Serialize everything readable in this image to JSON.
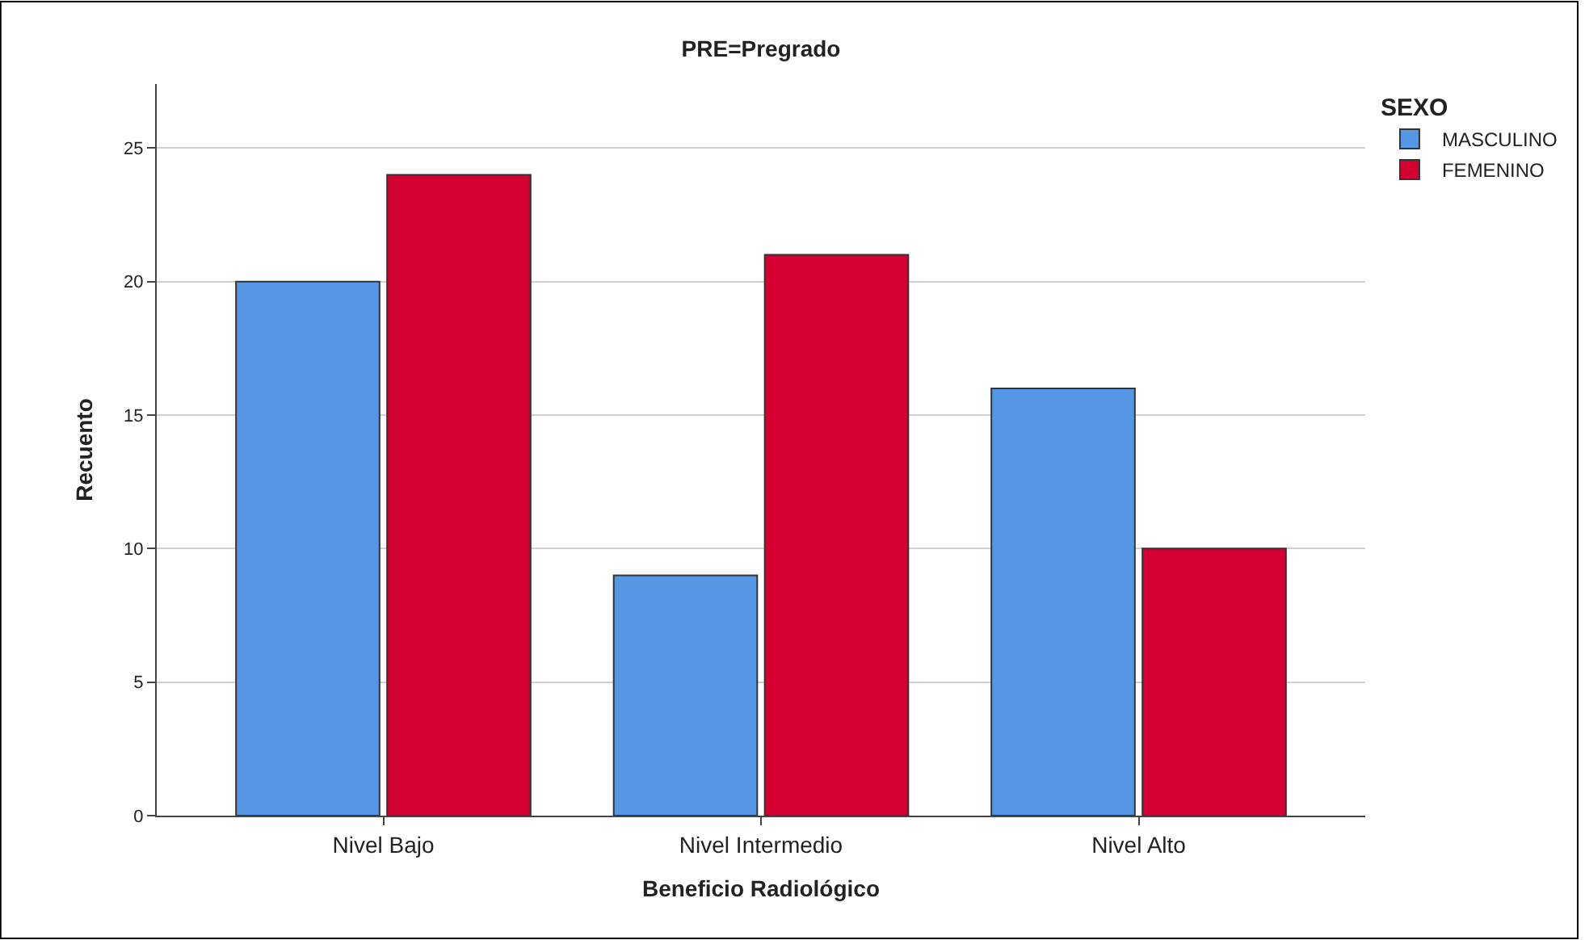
{
  "chart_data": {
    "type": "bar",
    "title": "PRE=Pregrado",
    "xlabel": "Beneficio Radiológico",
    "ylabel": "Recuento",
    "legend_title": "SEXO",
    "categories": [
      "Nivel Bajo",
      "Nivel Intermedio",
      "Nivel Alto"
    ],
    "series": [
      {
        "name": "MASCULINO",
        "color": "#5597e4",
        "values": [
          20,
          9,
          16
        ]
      },
      {
        "name": "FEMENINO",
        "color": "#d50032",
        "values": [
          24,
          21,
          10
        ]
      }
    ],
    "ylim": [
      0,
      27.4
    ],
    "yticks": [
      0,
      5,
      10,
      15,
      20,
      25
    ],
    "grid": "y",
    "legend": "top right"
  }
}
